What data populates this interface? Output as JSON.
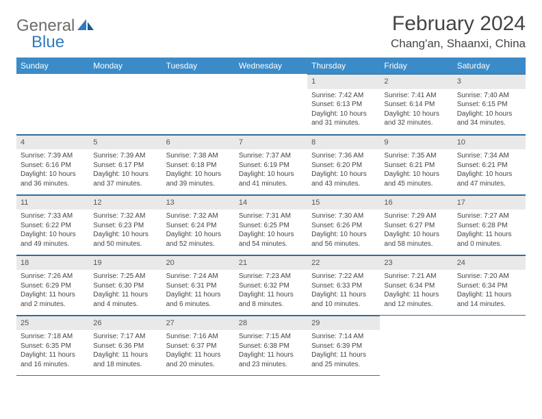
{
  "logo": {
    "text1": "General",
    "text2": "Blue"
  },
  "title": "February 2024",
  "location": "Chang'an, Shaanxi, China",
  "colors": {
    "header_bg": "#3b8bc8",
    "header_text": "#ffffff",
    "daynum_bg": "#e9e9e9",
    "border": "#2d6ca0",
    "logo_gray": "#6b6b6b",
    "logo_blue": "#2d7bc0"
  },
  "weekdays": [
    "Sunday",
    "Monday",
    "Tuesday",
    "Wednesday",
    "Thursday",
    "Friday",
    "Saturday"
  ],
  "grid": {
    "first_weekday_index": 4,
    "days_in_month": 29
  },
  "days": {
    "1": {
      "sunrise": "7:42 AM",
      "sunset": "6:13 PM",
      "daylight": "10 hours and 31 minutes."
    },
    "2": {
      "sunrise": "7:41 AM",
      "sunset": "6:14 PM",
      "daylight": "10 hours and 32 minutes."
    },
    "3": {
      "sunrise": "7:40 AM",
      "sunset": "6:15 PM",
      "daylight": "10 hours and 34 minutes."
    },
    "4": {
      "sunrise": "7:39 AM",
      "sunset": "6:16 PM",
      "daylight": "10 hours and 36 minutes."
    },
    "5": {
      "sunrise": "7:39 AM",
      "sunset": "6:17 PM",
      "daylight": "10 hours and 37 minutes."
    },
    "6": {
      "sunrise": "7:38 AM",
      "sunset": "6:18 PM",
      "daylight": "10 hours and 39 minutes."
    },
    "7": {
      "sunrise": "7:37 AM",
      "sunset": "6:19 PM",
      "daylight": "10 hours and 41 minutes."
    },
    "8": {
      "sunrise": "7:36 AM",
      "sunset": "6:20 PM",
      "daylight": "10 hours and 43 minutes."
    },
    "9": {
      "sunrise": "7:35 AM",
      "sunset": "6:21 PM",
      "daylight": "10 hours and 45 minutes."
    },
    "10": {
      "sunrise": "7:34 AM",
      "sunset": "6:21 PM",
      "daylight": "10 hours and 47 minutes."
    },
    "11": {
      "sunrise": "7:33 AM",
      "sunset": "6:22 PM",
      "daylight": "10 hours and 49 minutes."
    },
    "12": {
      "sunrise": "7:32 AM",
      "sunset": "6:23 PM",
      "daylight": "10 hours and 50 minutes."
    },
    "13": {
      "sunrise": "7:32 AM",
      "sunset": "6:24 PM",
      "daylight": "10 hours and 52 minutes."
    },
    "14": {
      "sunrise": "7:31 AM",
      "sunset": "6:25 PM",
      "daylight": "10 hours and 54 minutes."
    },
    "15": {
      "sunrise": "7:30 AM",
      "sunset": "6:26 PM",
      "daylight": "10 hours and 56 minutes."
    },
    "16": {
      "sunrise": "7:29 AM",
      "sunset": "6:27 PM",
      "daylight": "10 hours and 58 minutes."
    },
    "17": {
      "sunrise": "7:27 AM",
      "sunset": "6:28 PM",
      "daylight": "11 hours and 0 minutes."
    },
    "18": {
      "sunrise": "7:26 AM",
      "sunset": "6:29 PM",
      "daylight": "11 hours and 2 minutes."
    },
    "19": {
      "sunrise": "7:25 AM",
      "sunset": "6:30 PM",
      "daylight": "11 hours and 4 minutes."
    },
    "20": {
      "sunrise": "7:24 AM",
      "sunset": "6:31 PM",
      "daylight": "11 hours and 6 minutes."
    },
    "21": {
      "sunrise": "7:23 AM",
      "sunset": "6:32 PM",
      "daylight": "11 hours and 8 minutes."
    },
    "22": {
      "sunrise": "7:22 AM",
      "sunset": "6:33 PM",
      "daylight": "11 hours and 10 minutes."
    },
    "23": {
      "sunrise": "7:21 AM",
      "sunset": "6:34 PM",
      "daylight": "11 hours and 12 minutes."
    },
    "24": {
      "sunrise": "7:20 AM",
      "sunset": "6:34 PM",
      "daylight": "11 hours and 14 minutes."
    },
    "25": {
      "sunrise": "7:18 AM",
      "sunset": "6:35 PM",
      "daylight": "11 hours and 16 minutes."
    },
    "26": {
      "sunrise": "7:17 AM",
      "sunset": "6:36 PM",
      "daylight": "11 hours and 18 minutes."
    },
    "27": {
      "sunrise": "7:16 AM",
      "sunset": "6:37 PM",
      "daylight": "11 hours and 20 minutes."
    },
    "28": {
      "sunrise": "7:15 AM",
      "sunset": "6:38 PM",
      "daylight": "11 hours and 23 minutes."
    },
    "29": {
      "sunrise": "7:14 AM",
      "sunset": "6:39 PM",
      "daylight": "11 hours and 25 minutes."
    }
  },
  "labels": {
    "sunrise": "Sunrise:",
    "sunset": "Sunset:",
    "daylight": "Daylight:"
  }
}
